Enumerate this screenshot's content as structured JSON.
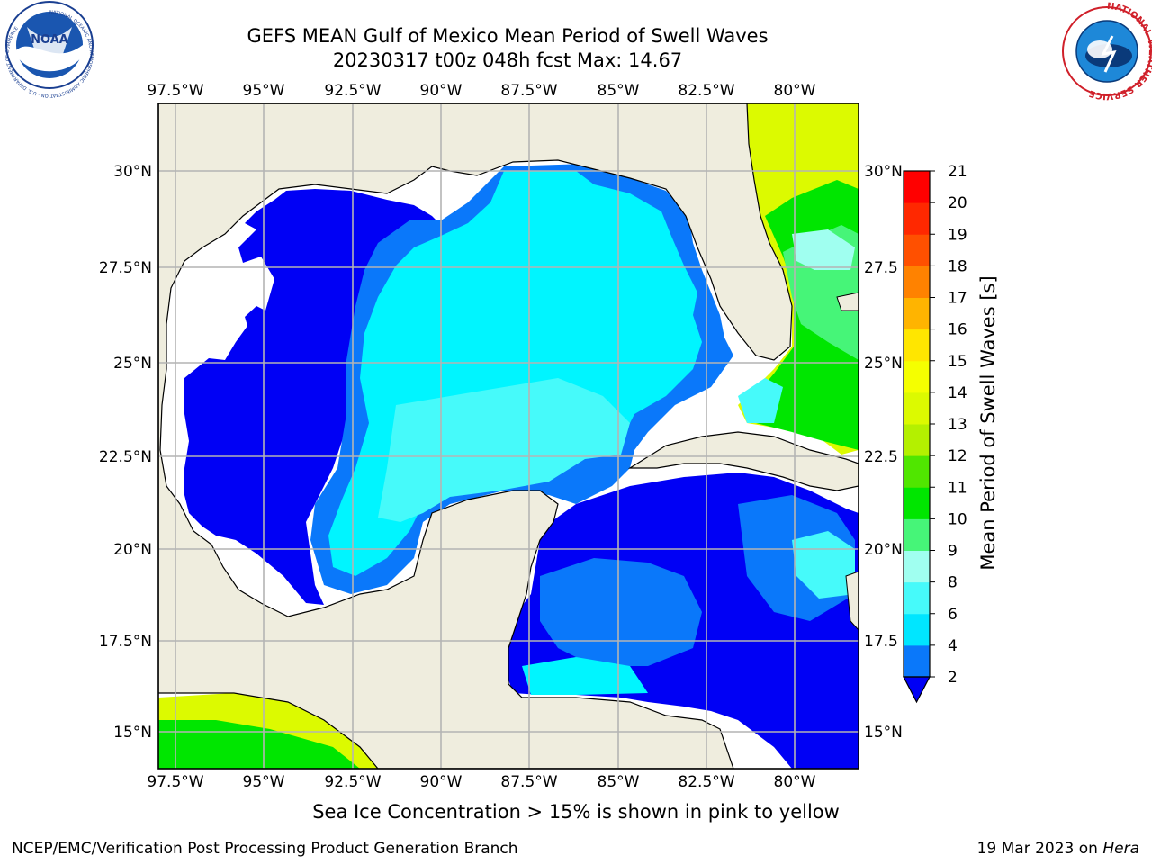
{
  "title": {
    "line1": "GEFS MEAN Gulf of Mexico Mean Period of Swell Waves",
    "line2": "20230317 t00z 048h fcst   Max: 14.67"
  },
  "axes": {
    "lon_labels": [
      "97.5°W",
      "95°W",
      "92.5°W",
      "90°W",
      "87.5°W",
      "85°W",
      "82.5°W",
      "80°W"
    ],
    "lat_labels_left": [
      "30°N",
      "27.5°N",
      "25°N",
      "22.5°N",
      "20°N",
      "17.5°N",
      "15°N"
    ],
    "lat_labels_right": [
      "30°N",
      "27.5",
      "25°N",
      "22.5",
      "20°N",
      "17.5",
      "15°N"
    ]
  },
  "colorbar": {
    "label": "Mean Period of Swell Waves [s]",
    "ticks": [
      "2",
      "4",
      "6",
      "8",
      "9",
      "10",
      "11",
      "12",
      "13",
      "14",
      "15",
      "16",
      "17",
      "18",
      "19",
      "20",
      "21"
    ],
    "colors": [
      "#0a78fa",
      "#00e6ff",
      "#46fafa",
      "#a0fff0",
      "#46f578",
      "#00e600",
      "#50e600",
      "#b4f000",
      "#dcfa00",
      "#f5ff00",
      "#ffe600",
      "#ffb400",
      "#ff8200",
      "#ff5000",
      "#ff2800",
      "#ff0000"
    ],
    "under_color": "#0000f5"
  },
  "colors": {
    "land": "#efedde",
    "no_data": "#ffffff",
    "grid": "#b4b4b4"
  },
  "footer": {
    "note": "Sea Ice Concentration > 15% is shown in pink to yellow",
    "credit": "NCEP/EMC/Verification Post Processing Product Generation Branch",
    "date": "19 Mar 2023 on",
    "host": "Hera"
  },
  "logos": {
    "noaa_text": "NOAA",
    "noaa_ring": "NATIONAL OCEANIC AND ATMOSPHERIC ADMINISTRATION · U.S. DEPARTMENT OF COMMERCE",
    "nws_ring": "NATIONAL WEATHER SERVICE"
  }
}
